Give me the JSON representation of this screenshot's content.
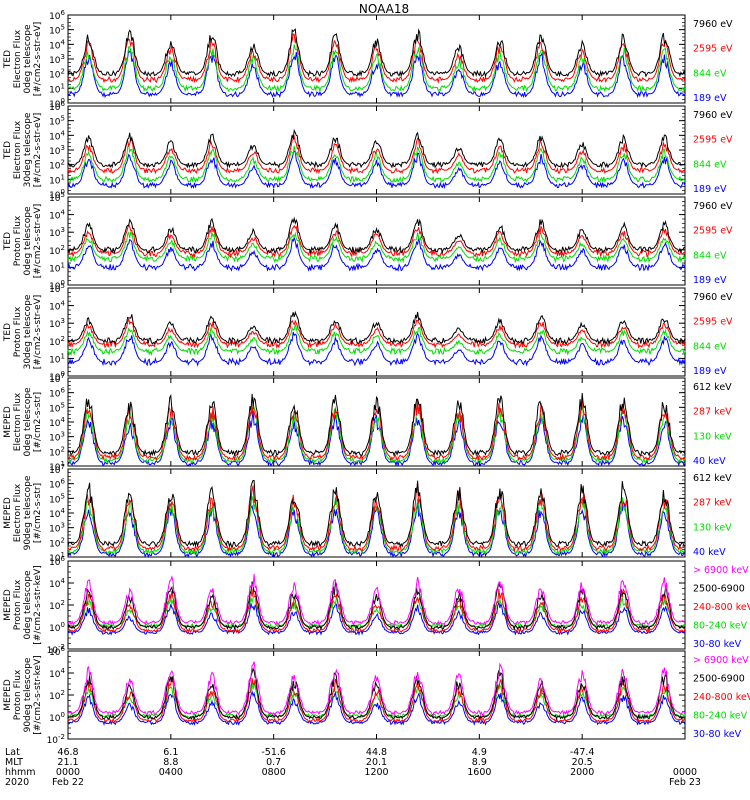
{
  "chart_data": {
    "type": "line",
    "title": "NOAA18",
    "x_range_hours": [
      0,
      24
    ],
    "panels": [
      {
        "ylabel": [
          "TED",
          "Electron Flux",
          "0deg telescope",
          "[#/cm2-s-str-eV]"
        ],
        "ylim_log10": [
          0,
          6
        ],
        "ytick_labels": [
          "10^0",
          "10^1",
          "10^2",
          "10^3",
          "10^4",
          "10^5",
          "10^6"
        ],
        "background_levels_log10": [
          2.0,
          1.6,
          1.0,
          0.6
        ],
        "series": [
          {
            "name": "7960 eV",
            "color": "#000000"
          },
          {
            "name": "2595 eV",
            "color": "#ff0000"
          },
          {
            "name": "844 eV",
            "color": "#00dd00"
          },
          {
            "name": "189 eV",
            "color": "#0000ff"
          }
        ]
      },
      {
        "ylabel": [
          "TED",
          "Electron Flux",
          "30deg telescope",
          "[#/cm2-s-str-eV]"
        ],
        "ylim_log10": [
          0,
          6
        ],
        "ytick_labels": [
          "10^0",
          "10^1",
          "10^2",
          "10^3",
          "10^4",
          "10^5",
          "10^6"
        ],
        "background_levels_log10": [
          2.0,
          1.6,
          1.0,
          0.6
        ],
        "series": [
          {
            "name": "7960 eV",
            "color": "#000000"
          },
          {
            "name": "2595 eV",
            "color": "#ff0000"
          },
          {
            "name": "844 eV",
            "color": "#00dd00"
          },
          {
            "name": "189 eV",
            "color": "#0000ff"
          }
        ]
      },
      {
        "ylabel": [
          "TED",
          "Proton Flux",
          "0deg telescope",
          "[#/cm2-s-str-eV]"
        ],
        "ylim_log10": [
          0,
          5
        ],
        "ytick_labels": [
          "10^0",
          "10^1",
          "10^2",
          "10^3",
          "10^4",
          "10^5"
        ],
        "background_levels_log10": [
          2.0,
          1.8,
          1.5,
          1.0
        ],
        "series": [
          {
            "name": "7960 eV",
            "color": "#000000"
          },
          {
            "name": "2595 eV",
            "color": "#ff0000"
          },
          {
            "name": "844 eV",
            "color": "#00dd00"
          },
          {
            "name": "189 eV",
            "color": "#0000ff"
          }
        ]
      },
      {
        "ylabel": [
          "TED",
          "Proton Flux",
          "30deg telescope",
          "[#/cm2-s-str-eV]"
        ],
        "ylim_log10": [
          0,
          5
        ],
        "ytick_labels": [
          "10^0",
          "10^1",
          "10^2",
          "10^3",
          "10^4",
          "10^5"
        ],
        "background_levels_log10": [
          2.0,
          1.8,
          1.4,
          0.8
        ],
        "series": [
          {
            "name": "7960 eV",
            "color": "#000000"
          },
          {
            "name": "2595 eV",
            "color": "#ff0000"
          },
          {
            "name": "844 eV",
            "color": "#00dd00"
          },
          {
            "name": "189 eV",
            "color": "#0000ff"
          }
        ]
      },
      {
        "ylabel": [
          "MEPED",
          "Electron Flux",
          "0deg telescope",
          "[#/cm2-s-str]"
        ],
        "ylim_log10": [
          1,
          7
        ],
        "ytick_labels": [
          "10^1",
          "10^2",
          "10^3",
          "10^4",
          "10^5",
          "10^6",
          "10^7"
        ],
        "background_levels_log10": [
          1.9,
          1.6,
          1.4,
          1.2
        ],
        "series": [
          {
            "name": "612 keV",
            "color": "#000000"
          },
          {
            "name": "287 keV",
            "color": "#ff0000"
          },
          {
            "name": "130 keV",
            "color": "#00dd00"
          },
          {
            "name": "40 keV",
            "color": "#0000ff"
          }
        ]
      },
      {
        "ylabel": [
          "MEPED",
          "Electron Flux",
          "90deg telescope",
          "[#/cm2-s-str]"
        ],
        "ylim_log10": [
          1,
          7
        ],
        "ytick_labels": [
          "10^1",
          "10^2",
          "10^3",
          "10^4",
          "10^5",
          "10^6",
          "10^7"
        ],
        "background_levels_log10": [
          1.9,
          1.6,
          1.4,
          1.2
        ],
        "series": [
          {
            "name": "612 keV",
            "color": "#000000"
          },
          {
            "name": "287 keV",
            "color": "#ff0000"
          },
          {
            "name": "130 keV",
            "color": "#00dd00"
          },
          {
            "name": "40 keV",
            "color": "#0000ff"
          }
        ]
      },
      {
        "ylabel": [
          "MEPED",
          "Proton Flux",
          "0deg telescope",
          "[#/cm2-s-str-keV]"
        ],
        "ylim_log10": [
          -2,
          6
        ],
        "ytick_labels": [
          "10^-2",
          "10^0",
          "10^2",
          "10^4",
          "10^6"
        ],
        "background_levels_log10": [
          0.4,
          0.0,
          -0.3,
          0.1,
          -0.5
        ],
        "series": [
          {
            "name": "> 6900 keV",
            "color": "#ff00ff"
          },
          {
            "name": "2500-6900",
            "color": "#000000"
          },
          {
            "name": "240-800 keV",
            "color": "#ff0000"
          },
          {
            "name": "80-240 keV",
            "color": "#00dd00"
          },
          {
            "name": "30-80 keV",
            "color": "#0000ff"
          }
        ]
      },
      {
        "ylabel": [
          "MEPED",
          "Proton Flux",
          "90deg telescope",
          "[#/cm2-s-str-keV]"
        ],
        "ylim_log10": [
          -2,
          6
        ],
        "ytick_labels": [
          "10^-2",
          "10^0",
          "10^2",
          "10^4",
          "10^6"
        ],
        "background_levels_log10": [
          0.4,
          0.0,
          -0.3,
          0.1,
          -0.5
        ],
        "series": [
          {
            "name": "> 6900 keV",
            "color": "#ff00ff"
          },
          {
            "name": "2500-6900",
            "color": "#000000"
          },
          {
            "name": "240-800 keV",
            "color": "#ff0000"
          },
          {
            "name": "80-240 keV",
            "color": "#00dd00"
          },
          {
            "name": "30-80 keV",
            "color": "#0000ff"
          }
        ]
      }
    ],
    "x_axis": {
      "row_labels": [
        "Lat",
        "MLT",
        "hhmm",
        "2020"
      ],
      "ticks": [
        {
          "hour": 0,
          "lat": "46.8",
          "mlt": "21.1",
          "hhmm": "0000",
          "date": "Feb 22"
        },
        {
          "hour": 4,
          "lat": "6.1",
          "mlt": "8.8",
          "hhmm": "0400",
          "date": ""
        },
        {
          "hour": 8,
          "lat": "-51.6",
          "mlt": "0.7",
          "hhmm": "0800",
          "date": ""
        },
        {
          "hour": 12,
          "lat": "44.8",
          "mlt": "20.1",
          "hhmm": "1200",
          "date": ""
        },
        {
          "hour": 16,
          "lat": "4.9",
          "mlt": "8.9",
          "hhmm": "1600",
          "date": ""
        },
        {
          "hour": 20,
          "lat": "-47.4",
          "mlt": "20.5",
          "hhmm": "2000",
          "date": ""
        },
        {
          "hour": 24,
          "lat": "",
          "mlt": "",
          "hhmm": "0000",
          "date": "Feb 23"
        }
      ]
    },
    "peak_hours": [
      0.8,
      2.4,
      4.0,
      5.6,
      7.2,
      8.8,
      10.4,
      12.0,
      13.6,
      15.2,
      16.8,
      18.4,
      20.0,
      21.6,
      23.2
    ],
    "peak_heights_log10": [
      [
        4.8,
        5.2,
        4.5,
        5.0,
        4.2,
        5.3,
        4.8,
        4.5,
        5.1,
        4.0,
        4.6,
        5.0,
        4.3,
        4.8,
        4.9
      ],
      [
        4.0,
        4.4,
        3.8,
        4.2,
        3.5,
        4.5,
        4.0,
        3.8,
        4.3,
        3.3,
        3.9,
        4.2,
        3.6,
        4.0,
        4.1
      ],
      [
        3.6,
        3.9,
        3.4,
        3.8,
        3.2,
        4.0,
        3.6,
        3.4,
        3.9,
        3.0,
        3.5,
        3.8,
        3.3,
        3.6,
        3.7
      ],
      [
        3.4,
        3.7,
        3.2,
        3.6,
        3.0,
        3.8,
        3.4,
        3.2,
        3.7,
        2.8,
        3.3,
        3.6,
        3.1,
        3.4,
        3.5
      ],
      [
        6.1,
        5.6,
        5.9,
        5.8,
        6.3,
        5.7,
        6.0,
        5.9,
        6.2,
        5.8,
        6.0,
        5.9,
        6.1,
        6.2,
        5.8
      ],
      [
        6.2,
        5.8,
        6.0,
        6.0,
        6.4,
        5.9,
        6.1,
        6.0,
        6.3,
        5.9,
        6.1,
        6.0,
        6.2,
        6.3,
        5.9
      ],
      [
        4.4,
        3.6,
        4.9,
        3.9,
        5.0,
        4.2,
        4.8,
        3.8,
        4.6,
        4.1,
        4.9,
        4.0,
        4.3,
        4.7,
        4.6
      ],
      [
        4.6,
        3.9,
        5.0,
        4.1,
        5.2,
        4.3,
        4.9,
        4.0,
        4.8,
        4.2,
        5.0,
        4.1,
        4.4,
        4.8,
        4.7
      ]
    ]
  }
}
